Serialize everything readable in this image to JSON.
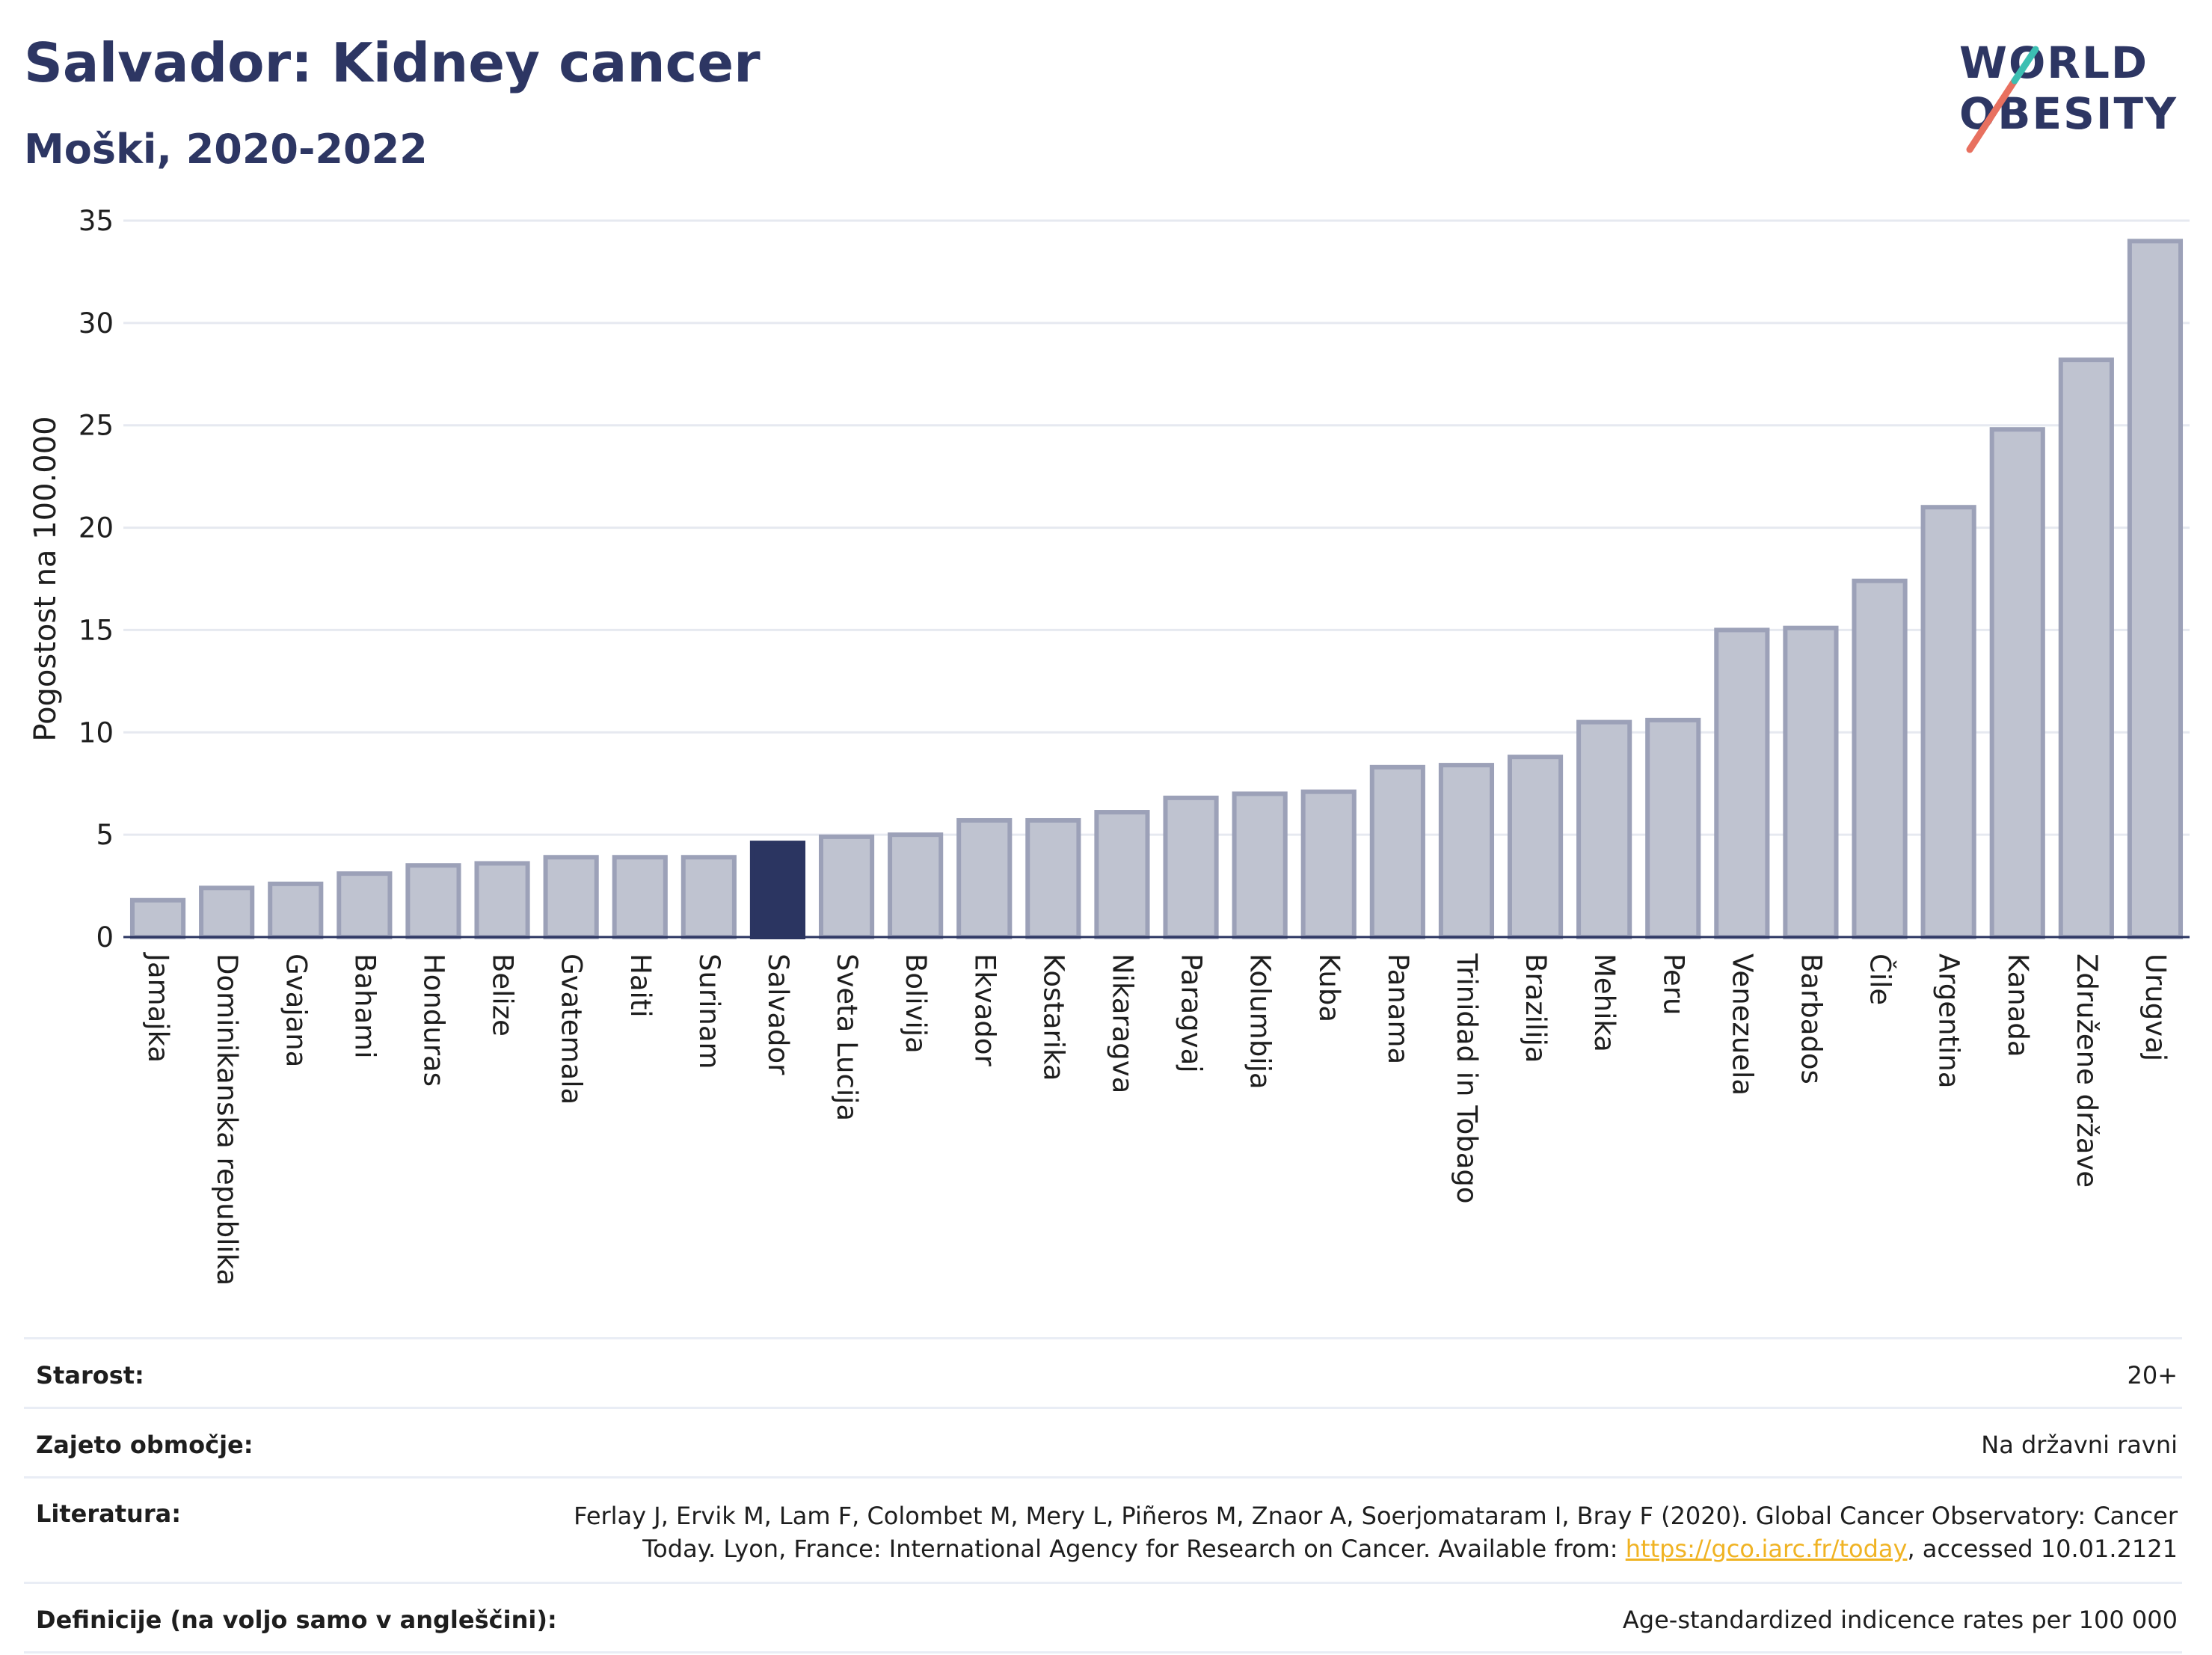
{
  "header": {
    "title": "Salvador: Kidney cancer",
    "subtitle": "Moški, 2020-2022",
    "logo_line1": "WORLD",
    "logo_line2": "OBESITY"
  },
  "colors": {
    "bar": "#bfc3d0",
    "bar_border": "#9ca1b8",
    "highlight": "#2b3561",
    "title": "#2d3663",
    "grid": "#e6e9f0"
  },
  "chart_data": {
    "type": "bar",
    "ylabel": "Pogostost na 100.000",
    "ylim": [
      0,
      35
    ],
    "yticks": [
      0,
      5,
      10,
      15,
      20,
      25,
      30,
      35
    ],
    "grid": true,
    "highlight": "Salvador",
    "categories": [
      "Jamajka",
      "Dominikanska republika",
      "Gvajana",
      "Bahami",
      "Honduras",
      "Belize",
      "Gvatemala",
      "Haiti",
      "Surinam",
      "Salvador",
      "Sveta Lucija",
      "Bolivija",
      "Ekvador",
      "Kostarika",
      "Nikaragva",
      "Paragvaj",
      "Kolumbija",
      "Kuba",
      "Panama",
      "Trinidad in Tobago",
      "Brazilija",
      "Mehika",
      "Peru",
      "Venezuela",
      "Barbados",
      "Čile",
      "Argentina",
      "Kanada",
      "Združene države",
      "Urugvaj"
    ],
    "values": [
      1.8,
      2.4,
      2.6,
      3.1,
      3.5,
      3.6,
      3.9,
      3.9,
      3.9,
      4.6,
      4.9,
      5.0,
      5.7,
      5.7,
      6.1,
      6.8,
      7.0,
      7.1,
      8.3,
      8.4,
      8.8,
      10.5,
      10.6,
      15.0,
      15.1,
      17.4,
      21.0,
      24.8,
      28.2,
      34.0
    ]
  },
  "info": {
    "age_label": "Starost:",
    "age_value": "20+",
    "area_label": "Zajeto območje:",
    "area_value": "Na državni ravni",
    "lit_label": "Literatura:",
    "lit_line1": "Ferlay J, Ervik M, Lam F, Colombet M, Mery L, Piñeros M, Znaor A, Soerjomataram I, Bray F (2020). Global Cancer Observatory: Cancer",
    "lit_line2_pre": "Today. Lyon, France: International Agency for Research on Cancer. Available from: ",
    "lit_link": "https://gco.iarc.fr/today",
    "lit_line2_post": ", accessed 10.01.2121",
    "def_label": "Definicije (na voljo samo v angleščini):",
    "def_value": "Age-standardized indicence rates per 100 000"
  }
}
